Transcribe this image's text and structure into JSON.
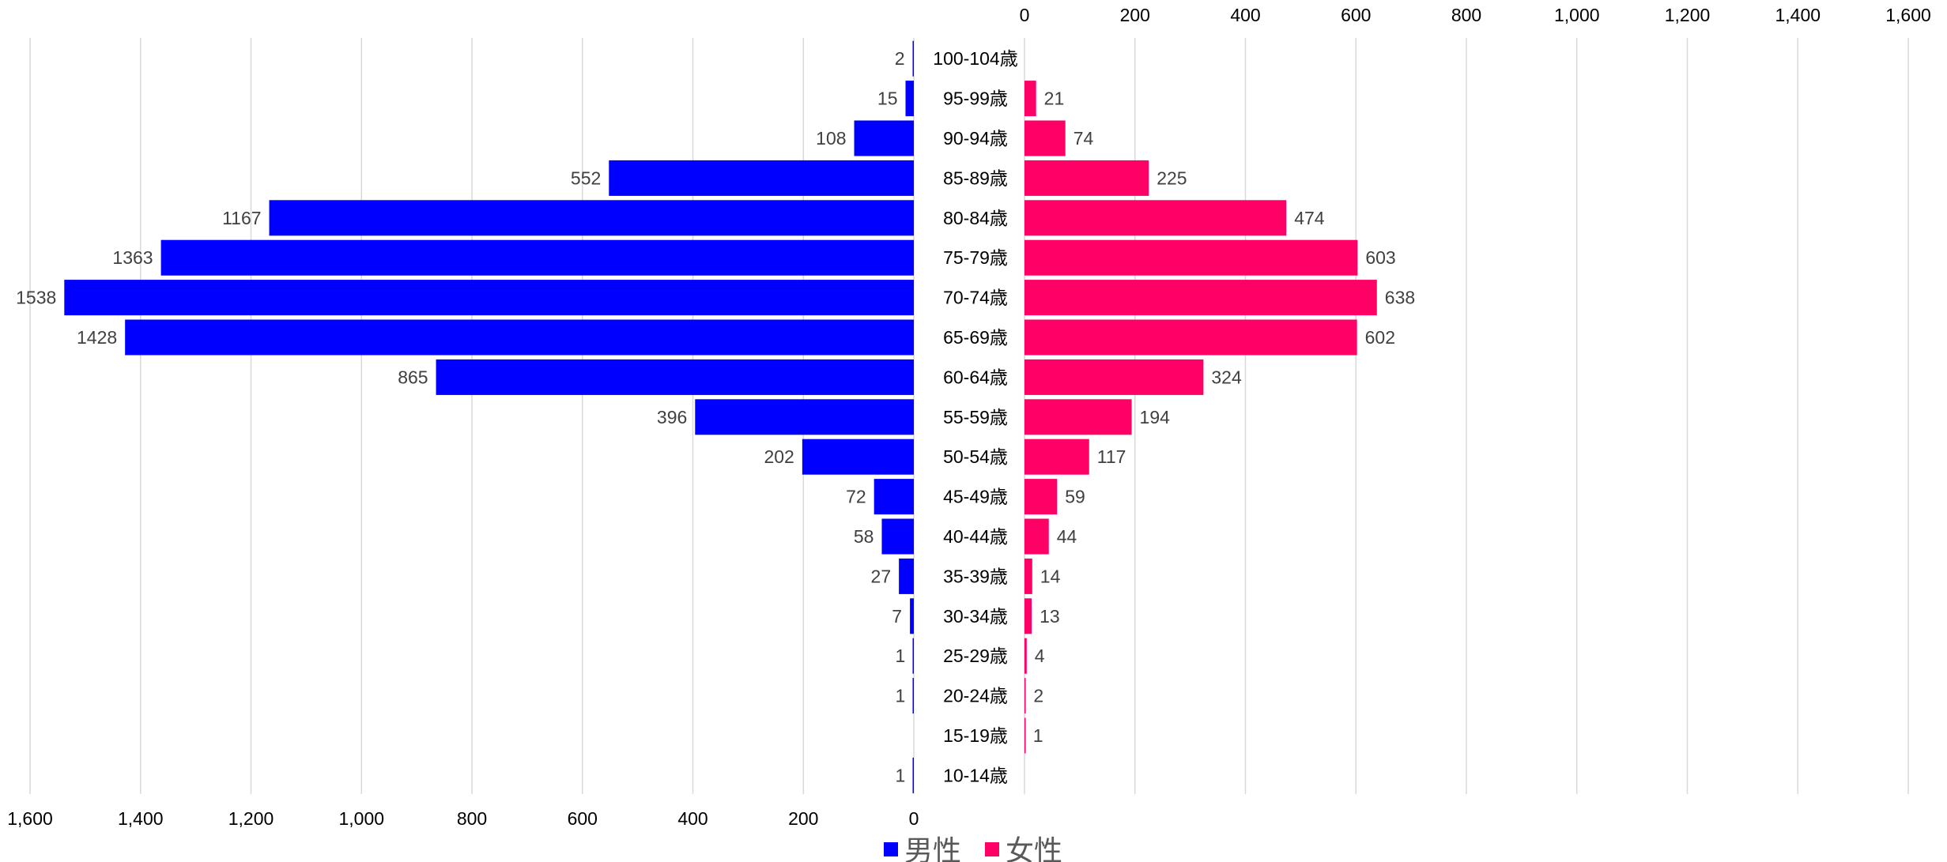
{
  "chart_data": {
    "type": "bar",
    "orientation": "horizontal",
    "layout": "population-pyramid",
    "categories": [
      "100-104歳",
      "95-99歳",
      "90-94歳",
      "85-89歳",
      "80-84歳",
      "75-79歳",
      "70-74歳",
      "65-69歳",
      "60-64歳",
      "55-59歳",
      "50-54歳",
      "45-49歳",
      "40-44歳",
      "35-39歳",
      "30-34歳",
      "25-29歳",
      "20-24歳",
      "15-19歳",
      "10-14歳"
    ],
    "series": [
      {
        "name": "男性",
        "color": "#0000ff",
        "side": "left",
        "values": [
          2,
          15,
          108,
          552,
          1167,
          1363,
          1538,
          1428,
          865,
          396,
          202,
          72,
          58,
          27,
          7,
          1,
          1,
          null,
          1
        ],
        "labels": [
          "2",
          "15",
          "108",
          "552",
          "1167",
          "1363",
          "1538",
          "1428",
          "865",
          "396",
          "202",
          "72",
          "58",
          "27",
          "7",
          "1",
          "1",
          "",
          "1"
        ],
        "axis_ticks": [
          "1,600",
          "1,400",
          "1,200",
          "1,000",
          "800",
          "600",
          "400",
          "200",
          "0"
        ]
      },
      {
        "name": "女性",
        "color": "#ff0066",
        "side": "right",
        "values": [
          null,
          21,
          74,
          225,
          474,
          603,
          638,
          602,
          324,
          194,
          117,
          59,
          44,
          14,
          13,
          4,
          2,
          1,
          null
        ],
        "labels": [
          "",
          "21",
          "74",
          "225",
          "474",
          "603",
          "638",
          "602",
          "324",
          "194",
          "117",
          "59",
          "44",
          "14",
          "13",
          "4",
          "2",
          "1",
          ""
        ],
        "axis_ticks": [
          "0",
          "200",
          "400",
          "600",
          "800",
          "1,000",
          "1,200",
          "1,400",
          "1,600"
        ]
      }
    ],
    "xlim": [
      0,
      1600
    ],
    "grid": true,
    "legend": "bottom"
  }
}
